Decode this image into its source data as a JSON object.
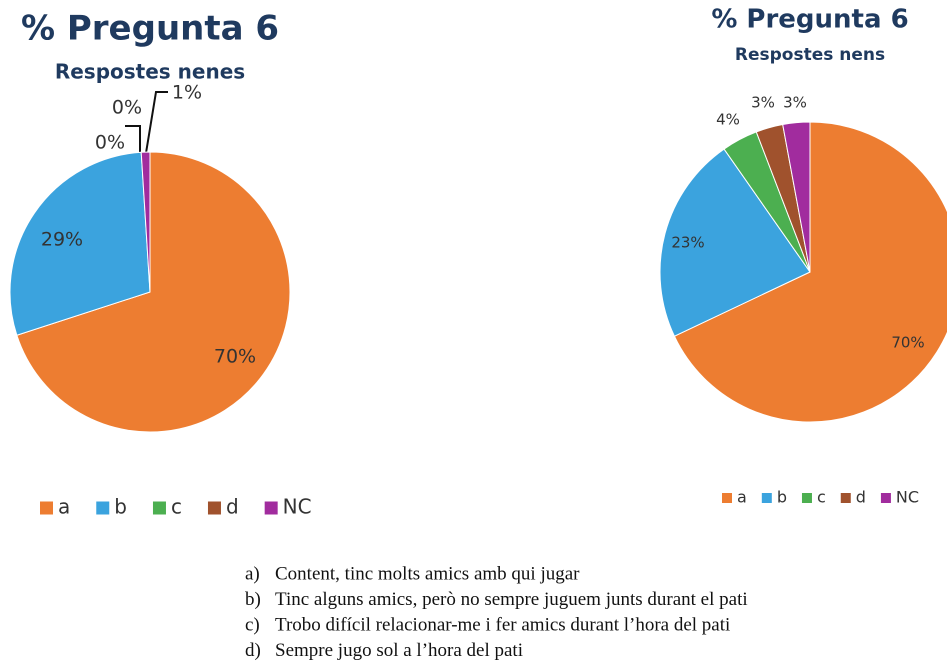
{
  "chart_data": [
    {
      "type": "pie",
      "title": "% Pregunta 6",
      "subtitle": "Respostes nenes",
      "categories": [
        "a",
        "b",
        "c",
        "d",
        "NC"
      ],
      "values": [
        70,
        29,
        0,
        0,
        1
      ],
      "value_labels": [
        "70%",
        "29%",
        "0%",
        "0%",
        "1%"
      ],
      "colors": [
        "#ED7D31",
        "#3BA3DE",
        "#4CAF50",
        "#A0522D",
        "#A12C9E"
      ]
    },
    {
      "type": "pie",
      "title": "% Pregunta 6",
      "subtitle": "Respostes nens",
      "categories": [
        "a",
        "b",
        "c",
        "d",
        "NC"
      ],
      "values": [
        70,
        23,
        4,
        3,
        3
      ],
      "value_labels": [
        "70%",
        "23%",
        "4%",
        "3%",
        "3%"
      ],
      "colors": [
        "#ED7D31",
        "#3BA3DE",
        "#4CAF50",
        "#A0522D",
        "#A12C9E"
      ]
    }
  ],
  "options": [
    {
      "letter": "a)",
      "text": "Content, tinc molts amics amb qui jugar"
    },
    {
      "letter": "b)",
      "text": "Tinc alguns amics, però no sempre juguem junts durant el pati"
    },
    {
      "letter": "c)",
      "text": "Trobo difícil relacionar-me i fer amics durant l’hora del pati"
    },
    {
      "letter": "d)",
      "text": "Sempre jugo sol a l’hora del pati"
    }
  ]
}
